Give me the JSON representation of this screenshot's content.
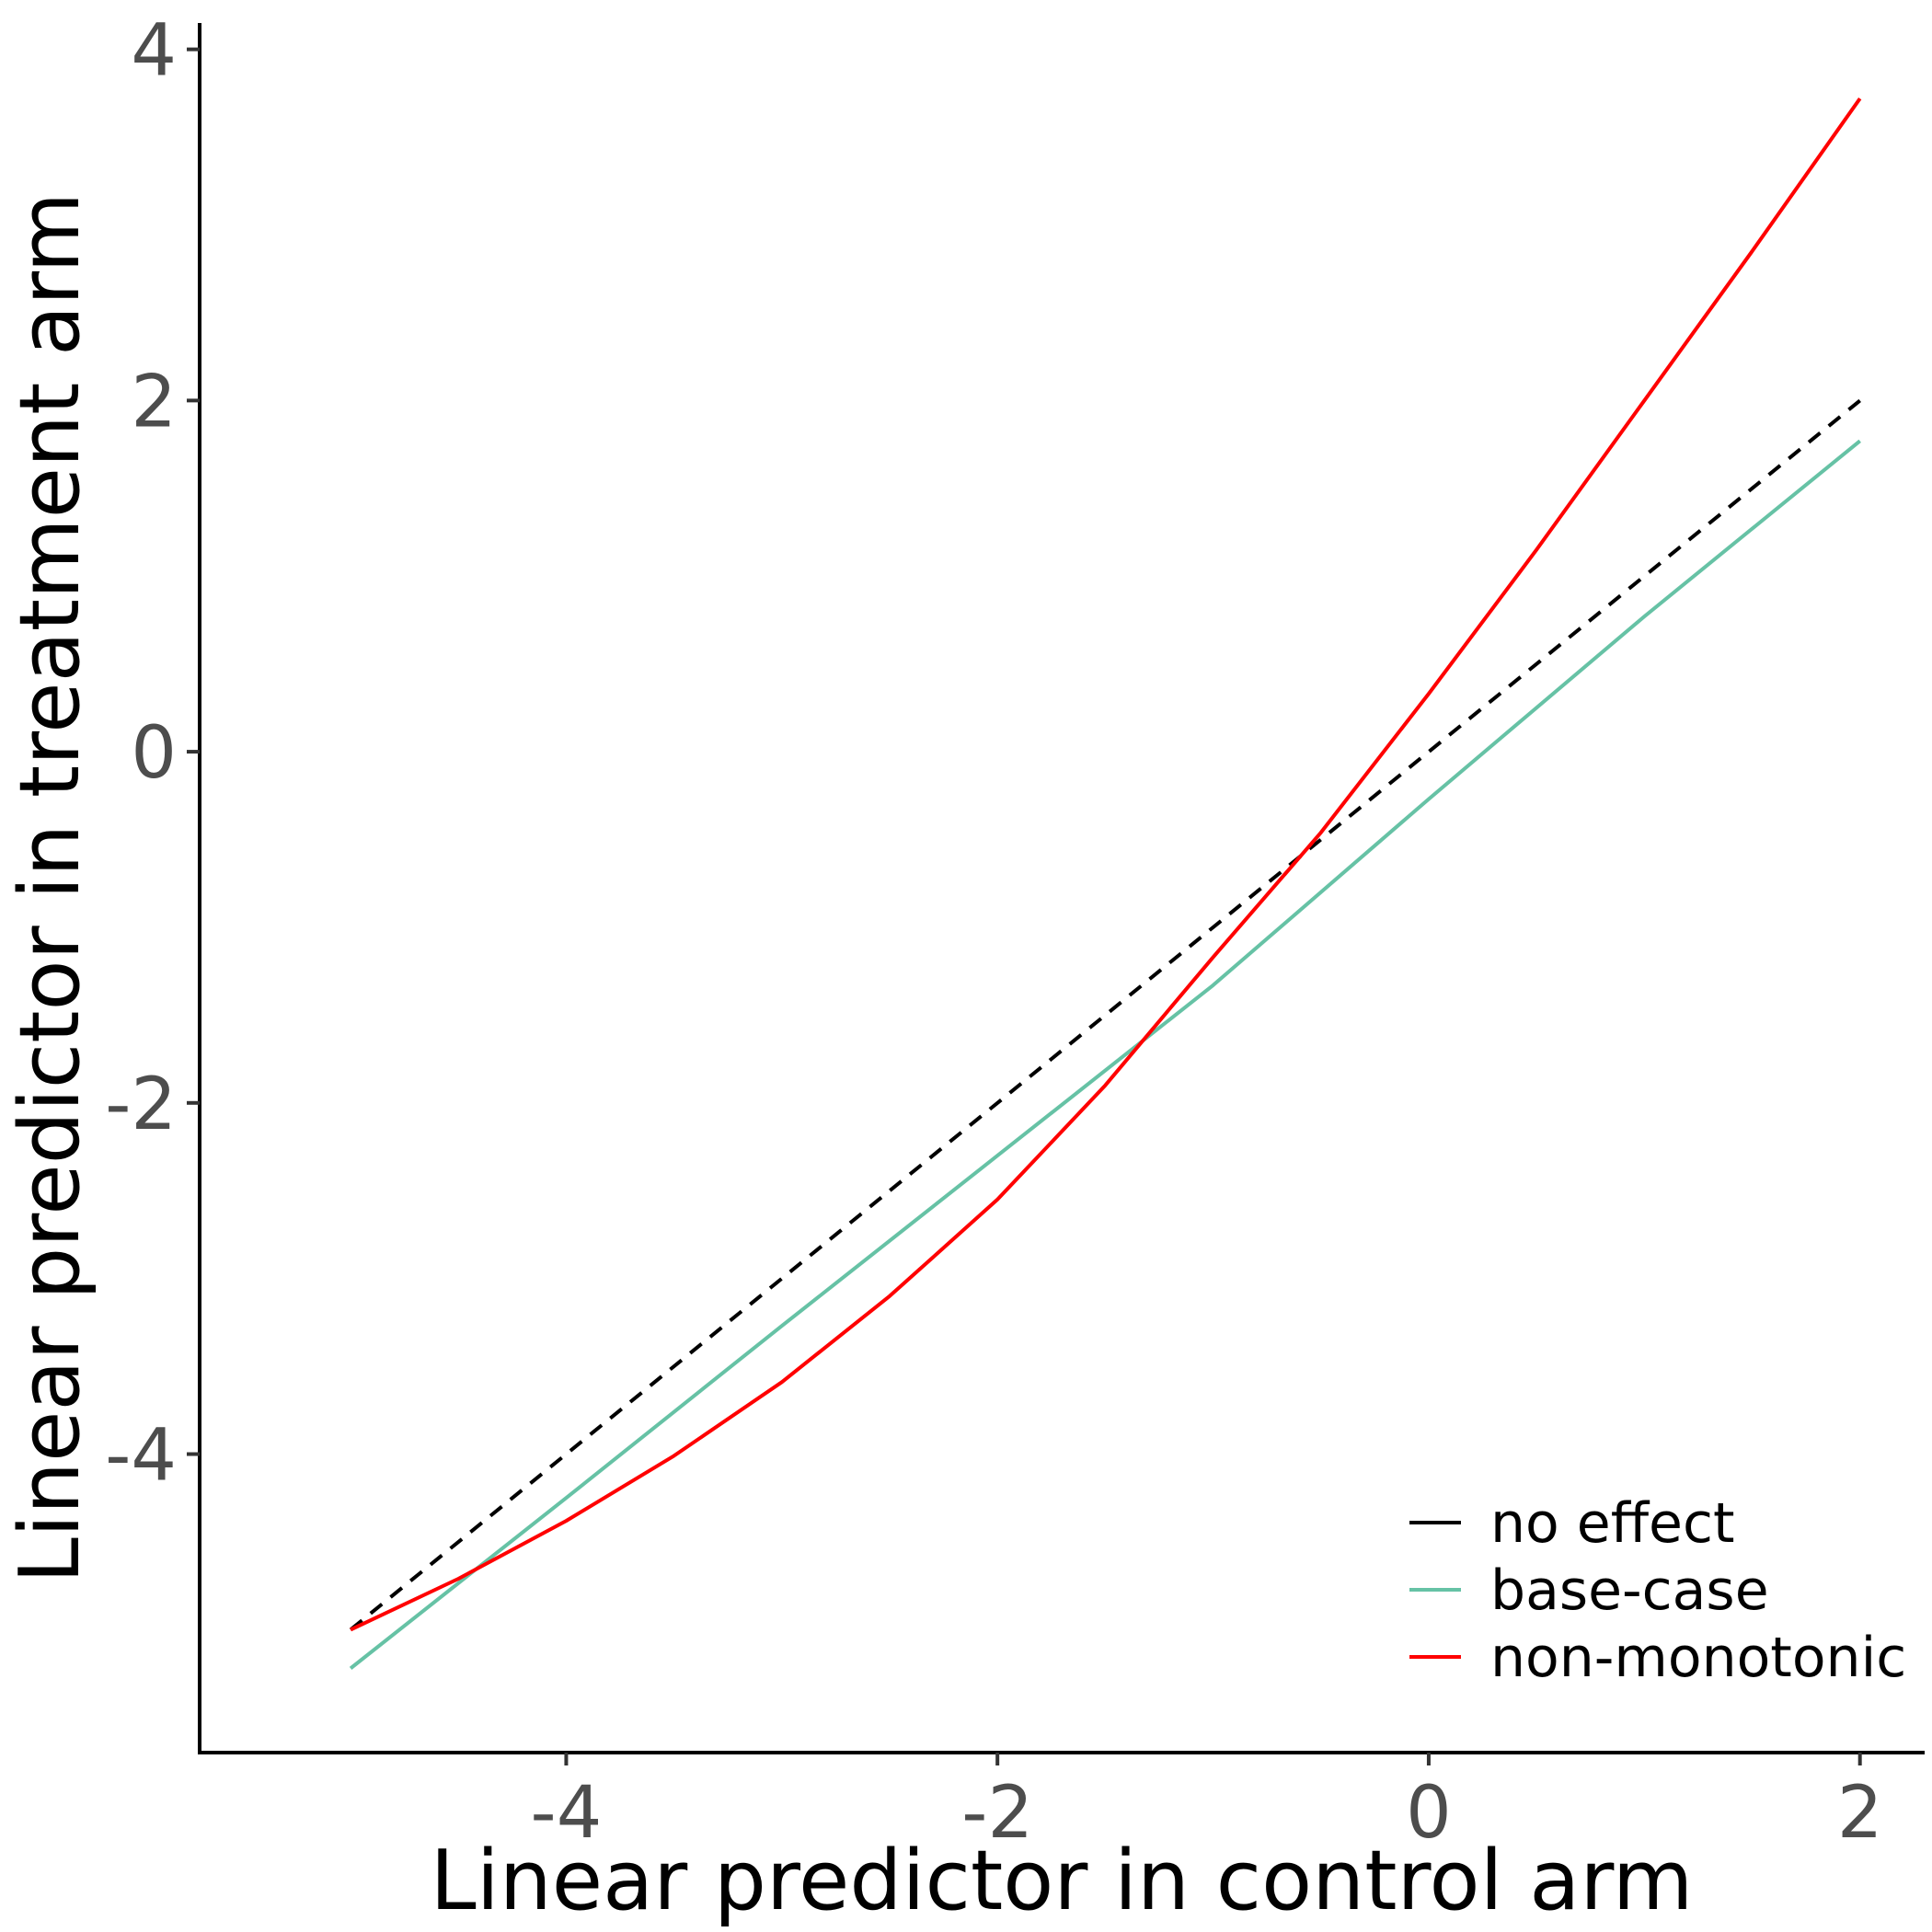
{
  "chart_data": {
    "type": "line",
    "xlabel": "Linear predictor in control arm",
    "ylabel": "Linear predictor in treatment arm",
    "xlim": [
      -5.7,
      2.3
    ],
    "ylim": [
      -5.7,
      4.15
    ],
    "xticks": [
      -4,
      -2,
      0,
      2
    ],
    "yticks": [
      -4,
      -2,
      0,
      2,
      4
    ],
    "tick_labels_x": [
      "-4",
      "-2",
      "0",
      "2"
    ],
    "tick_labels_y": [
      "-4",
      "-2",
      "0",
      "2",
      "4"
    ],
    "grid": false,
    "legend_position": "bottom-right, inside plot",
    "series": [
      {
        "name": "no effect",
        "color": "#000000",
        "dash": "dashed",
        "x": [
          -5,
          2
        ],
        "y": [
          -5,
          2
        ]
      },
      {
        "name": "base-case",
        "color": "#66c2a5",
        "dash": "solid",
        "x": [
          -5,
          -4,
          -3,
          -2,
          -1,
          0,
          1,
          2
        ],
        "y": [
          -5.22,
          -4.25,
          -3.27,
          -2.3,
          -1.33,
          -0.27,
          0.77,
          1.77
        ]
      },
      {
        "name": "non-monotonic",
        "color": "#ff0000",
        "dash": "solid",
        "x": [
          -5,
          -4.5,
          -4,
          -3.5,
          -3,
          -2.5,
          -2,
          -1.5,
          -1,
          -0.5,
          0,
          0.5,
          1,
          1.5,
          2
        ],
        "y": [
          -5,
          -4.71,
          -4.38,
          -4.01,
          -3.59,
          -3.1,
          -2.55,
          -1.9,
          -1.17,
          -0.46,
          0.33,
          1.15,
          2.0,
          2.85,
          3.72
        ]
      }
    ]
  }
}
